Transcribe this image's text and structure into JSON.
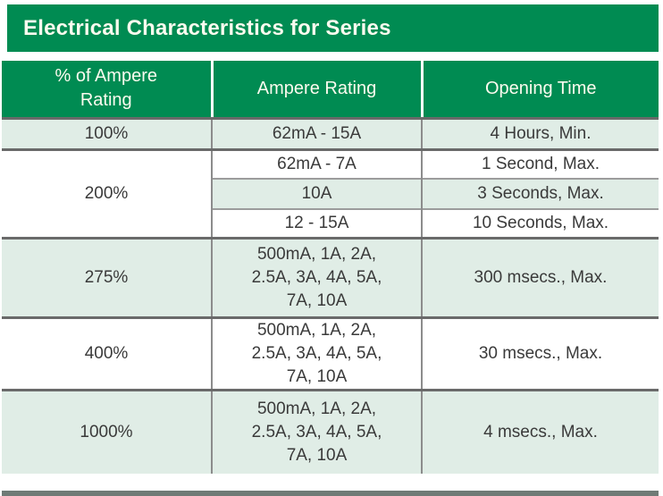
{
  "title": "Electrical Characteristics for Series",
  "colors": {
    "brand_green": "#008b52",
    "row_tint": "#e0ede6",
    "header_text": "#fcfbef",
    "body_text": "#3a3a3a",
    "rule_strong": "#6a6a6a",
    "rule_thin": "#9c9c9c",
    "bottom_bar": "#6f7b76"
  },
  "table": {
    "headers": [
      "% of Ampere\nRating",
      "Ampere Rating",
      "Opening Time"
    ],
    "rows": [
      {
        "percent": "100%",
        "ampere": "62mA - 15A",
        "time": "4 Hours, Min."
      },
      {
        "percent": "200%",
        "sub": [
          {
            "ampere": "62mA - 7A",
            "time": "1 Second, Max."
          },
          {
            "ampere": "10A",
            "time": "3 Seconds, Max."
          },
          {
            "ampere": "12 - 15A",
            "time": "10 Seconds, Max."
          }
        ]
      },
      {
        "percent": "275%",
        "ampere": "500mA, 1A, 2A,\n2.5A, 3A, 4A, 5A,\n7A, 10A",
        "time": "300 msecs., Max."
      },
      {
        "percent": "400%",
        "ampere": "500mA, 1A, 2A,\n2.5A, 3A, 4A, 5A,\n7A, 10A",
        "time": "30 msecs., Max."
      },
      {
        "percent": "1000%",
        "ampere": "500mA, 1A, 2A,\n2.5A, 3A, 4A, 5A,\n7A, 10A",
        "time": "4 msecs., Max."
      }
    ]
  }
}
